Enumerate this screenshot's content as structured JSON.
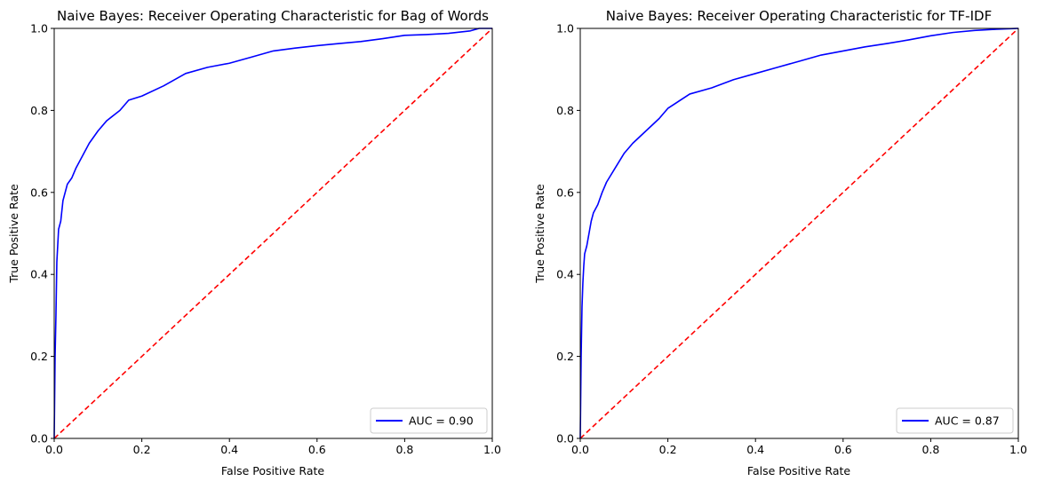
{
  "figure": {
    "background": "#ffffff"
  },
  "chart_data": [
    {
      "type": "line",
      "title": "Naive Bayes: Receiver Operating Characteristic for Bag of Words",
      "xlabel": "False Positive Rate",
      "ylabel": "True Positive Rate",
      "xlim": [
        0,
        1
      ],
      "ylim": [
        0,
        1
      ],
      "x_ticks": [
        0.0,
        0.2,
        0.4,
        0.6,
        0.8,
        1.0
      ],
      "y_ticks": [
        0.0,
        0.2,
        0.4,
        0.6,
        0.8,
        1.0
      ],
      "x_tick_labels": [
        "0.0",
        "0.2",
        "0.4",
        "0.6",
        "0.8",
        "1.0"
      ],
      "y_tick_labels": [
        "0.0",
        "0.2",
        "0.4",
        "0.6",
        "0.8",
        "1.0"
      ],
      "grid": false,
      "legend_position": "lower-right",
      "series": [
        {
          "name": "AUC = 0.90",
          "color": "#0000ff",
          "line_style": "solid",
          "x": [
            0.0,
            0.002,
            0.004,
            0.006,
            0.01,
            0.015,
            0.02,
            0.025,
            0.03,
            0.04,
            0.05,
            0.06,
            0.08,
            0.1,
            0.12,
            0.15,
            0.17,
            0.2,
            0.25,
            0.3,
            0.35,
            0.4,
            0.45,
            0.5,
            0.55,
            0.6,
            0.65,
            0.7,
            0.75,
            0.8,
            0.85,
            0.9,
            0.95,
            0.97,
            1.0
          ],
          "y": [
            0.0,
            0.2,
            0.3,
            0.43,
            0.51,
            0.53,
            0.58,
            0.6,
            0.62,
            0.635,
            0.66,
            0.68,
            0.72,
            0.75,
            0.775,
            0.8,
            0.825,
            0.835,
            0.86,
            0.89,
            0.905,
            0.915,
            0.93,
            0.945,
            0.952,
            0.958,
            0.963,
            0.968,
            0.975,
            0.983,
            0.985,
            0.988,
            0.994,
            1.0,
            1.0
          ]
        },
        {
          "name": "",
          "color": "#ff0000",
          "line_style": "dashed",
          "x": [
            0.0,
            1.0
          ],
          "y": [
            0.0,
            1.0
          ]
        }
      ],
      "legend_entries": [
        "AUC = 0.90"
      ]
    },
    {
      "type": "line",
      "title": "Naive Bayes: Receiver Operating Characteristic for TF-IDF",
      "xlabel": "False Positive Rate",
      "ylabel": "True Positive Rate",
      "xlim": [
        0,
        1
      ],
      "ylim": [
        0,
        1
      ],
      "x_ticks": [
        0.0,
        0.2,
        0.4,
        0.6,
        0.8,
        1.0
      ],
      "y_ticks": [
        0.0,
        0.2,
        0.4,
        0.6,
        0.8,
        1.0
      ],
      "x_tick_labels": [
        "0.0",
        "0.2",
        "0.4",
        "0.6",
        "0.8",
        "1.0"
      ],
      "y_tick_labels": [
        "0.0",
        "0.2",
        "0.4",
        "0.6",
        "0.8",
        "1.0"
      ],
      "grid": false,
      "legend_position": "lower-right",
      "series": [
        {
          "name": "AUC = 0.87",
          "color": "#0000ff",
          "line_style": "solid",
          "x": [
            0.0,
            0.002,
            0.004,
            0.006,
            0.008,
            0.01,
            0.015,
            0.02,
            0.025,
            0.03,
            0.04,
            0.05,
            0.06,
            0.08,
            0.1,
            0.12,
            0.15,
            0.18,
            0.2,
            0.25,
            0.3,
            0.35,
            0.4,
            0.45,
            0.5,
            0.55,
            0.6,
            0.65,
            0.7,
            0.75,
            0.8,
            0.85,
            0.9,
            0.95,
            1.0
          ],
          "y": [
            0.0,
            0.2,
            0.32,
            0.38,
            0.42,
            0.45,
            0.47,
            0.5,
            0.53,
            0.55,
            0.57,
            0.6,
            0.625,
            0.66,
            0.695,
            0.72,
            0.75,
            0.78,
            0.805,
            0.84,
            0.855,
            0.875,
            0.89,
            0.905,
            0.92,
            0.935,
            0.945,
            0.955,
            0.963,
            0.972,
            0.982,
            0.99,
            0.995,
            0.998,
            1.0
          ]
        },
        {
          "name": "",
          "color": "#ff0000",
          "line_style": "dashed",
          "x": [
            0.0,
            1.0
          ],
          "y": [
            0.0,
            1.0
          ]
        }
      ],
      "legend_entries": [
        "AUC = 0.87"
      ]
    }
  ]
}
